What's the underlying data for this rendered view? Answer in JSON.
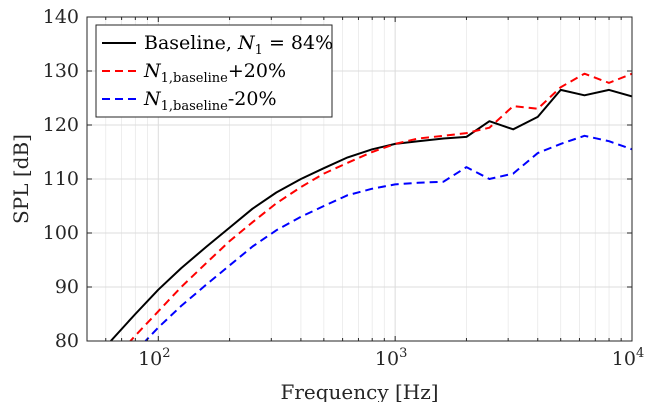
{
  "chart_data": {
    "type": "line",
    "xlabel": "Frequency [Hz]",
    "ylabel": "SPL [dB]",
    "x_scale": "log",
    "xlim": [
      50,
      10000
    ],
    "ylim": [
      80,
      140
    ],
    "grid": true,
    "legend_position": "top-left",
    "x_ticks": [
      100,
      1000,
      10000
    ],
    "x_tick_labels": [
      {
        "base": "10",
        "exp": "2"
      },
      {
        "base": "10",
        "exp": "3"
      },
      {
        "base": "10",
        "exp": "4"
      }
    ],
    "y_ticks": [
      80,
      90,
      100,
      110,
      120,
      130,
      140
    ],
    "series": [
      {
        "name": "Baseline, N1 = 84%",
        "legend": {
          "pre": "Baseline, ",
          "var": "N",
          "sub": "1",
          "post": " = 84%"
        },
        "color": "#000000",
        "dash": "solid",
        "x": [
          63,
          80,
          100,
          125,
          160,
          200,
          250,
          315,
          400,
          500,
          630,
          800,
          1000,
          1250,
          1600,
          2000,
          2500,
          3150,
          4000,
          5000,
          6300,
          8000,
          10000
        ],
        "y": [
          80,
          85,
          89.5,
          93.5,
          97.5,
          101,
          104.5,
          107.5,
          110,
          112,
          114,
          115.5,
          116.5,
          117,
          117.5,
          117.8,
          120.7,
          119.2,
          121.5,
          126.5,
          125.5,
          126.5,
          125.3
        ]
      },
      {
        "name": "N1,baseline+20%",
        "legend": {
          "pre": "",
          "var": "N",
          "sub": "1,baseline",
          "post": "+20%"
        },
        "color": "#ff0000",
        "dash": "dashed",
        "x": [
          63,
          80,
          100,
          125,
          160,
          200,
          250,
          315,
          400,
          500,
          630,
          800,
          1000,
          1250,
          1600,
          2000,
          2500,
          3150,
          4000,
          5000,
          6300,
          8000,
          10000
        ],
        "y": [
          76,
          81,
          85.5,
          90,
          94.5,
          98.5,
          102,
          105.5,
          108.5,
          111,
          113,
          115,
          116.5,
          117.5,
          118,
          118.5,
          119.5,
          123.5,
          123,
          127,
          129.5,
          127.8,
          129.5
        ]
      },
      {
        "name": "N1,baseline-20%",
        "legend": {
          "pre": "",
          "var": "N",
          "sub": "1,baseline",
          "post": "-20%"
        },
        "color": "#0000ff",
        "dash": "dashed",
        "x": [
          63,
          80,
          100,
          125,
          160,
          200,
          250,
          315,
          400,
          500,
          630,
          800,
          1000,
          1250,
          1600,
          2000,
          2500,
          3150,
          4000,
          5000,
          6300,
          8000,
          10000
        ],
        "y": [
          72,
          78,
          82.5,
          86.5,
          90.5,
          94,
          97.5,
          100.5,
          103,
          105,
          107,
          108.2,
          109,
          109.3,
          109.5,
          112.2,
          110,
          111,
          114.8,
          116.5,
          118,
          117,
          115.5
        ]
      }
    ]
  }
}
